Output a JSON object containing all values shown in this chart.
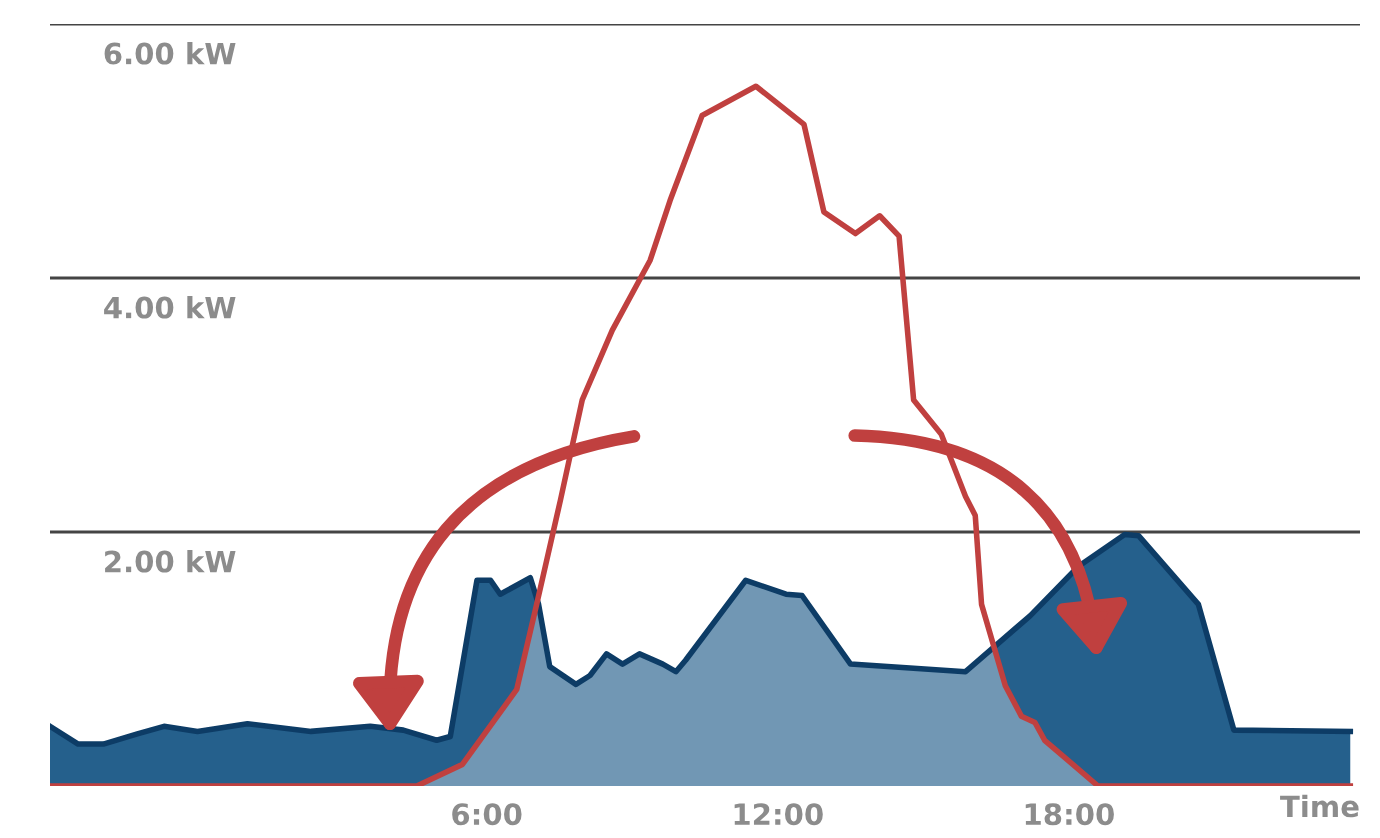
{
  "chart_data": {
    "type": "area",
    "xlabel": "Time",
    "xlim": [
      -3,
      24
    ],
    "ylim": [
      0,
      6
    ],
    "xticks": [
      {
        "value": 6,
        "label": "6:00"
      },
      {
        "value": 12,
        "label": "12:00"
      },
      {
        "value": 18,
        "label": "18:00"
      }
    ],
    "yticks": [
      {
        "value": 2,
        "label": "2.00 kW"
      },
      {
        "value": 4,
        "label": "4.00 kW"
      },
      {
        "value": 6,
        "label": "6.00 kW"
      }
    ],
    "grid": "y",
    "legend": false,
    "series": [
      {
        "color": "#25608c",
        "x": [
          -3.0,
          -2.42,
          -1.9,
          -1.2,
          -0.65,
          0.04,
          1.07,
          2.38,
          3.6,
          4.28,
          4.97,
          5.25,
          5.8,
          6.08,
          6.28,
          6.9,
          7.07,
          7.3,
          7.84,
          8.13,
          8.47,
          8.8,
          9.15,
          9.63,
          9.9,
          10.1,
          11.34,
          12.17,
          12.5,
          13.5,
          15.87,
          17.2,
          18.2,
          19.15,
          19.44,
          20.67,
          21.4,
          23.8
        ],
        "values": [
          0.47,
          0.33,
          0.33,
          0.41,
          0.47,
          0.43,
          0.49,
          0.43,
          0.47,
          0.44,
          0.36,
          0.39,
          1.62,
          1.62,
          1.51,
          1.64,
          1.43,
          0.94,
          0.8,
          0.87,
          1.04,
          0.96,
          1.04,
          0.96,
          0.9,
          0.99,
          1.62,
          1.51,
          1.5,
          0.96,
          0.9,
          1.34,
          1.73,
          1.98,
          1.97,
          1.43,
          0.44,
          0.43
        ]
      },
      {
        "type": "line",
        "color": "#c0403f",
        "x": [
          -3.0,
          4.56,
          5.5,
          6.62,
          7.03,
          7.52,
          7.97,
          8.59,
          9.37,
          9.78,
          10.44,
          11.55,
          12.54,
          12.95,
          13.6,
          14.1,
          14.5,
          14.8,
          15.37,
          15.87,
          16.07,
          16.2,
          16.69,
          17.02,
          17.3,
          17.5,
          18.6,
          23.8
        ],
        "values": [
          0,
          0,
          0.17,
          0.76,
          1.43,
          2.25,
          3.04,
          3.59,
          4.14,
          4.61,
          5.28,
          5.51,
          5.21,
          4.52,
          4.35,
          4.49,
          4.33,
          3.04,
          2.77,
          2.28,
          2.13,
          1.43,
          0.79,
          0.55,
          0.5,
          0.36,
          0,
          0
        ]
      }
    ]
  }
}
